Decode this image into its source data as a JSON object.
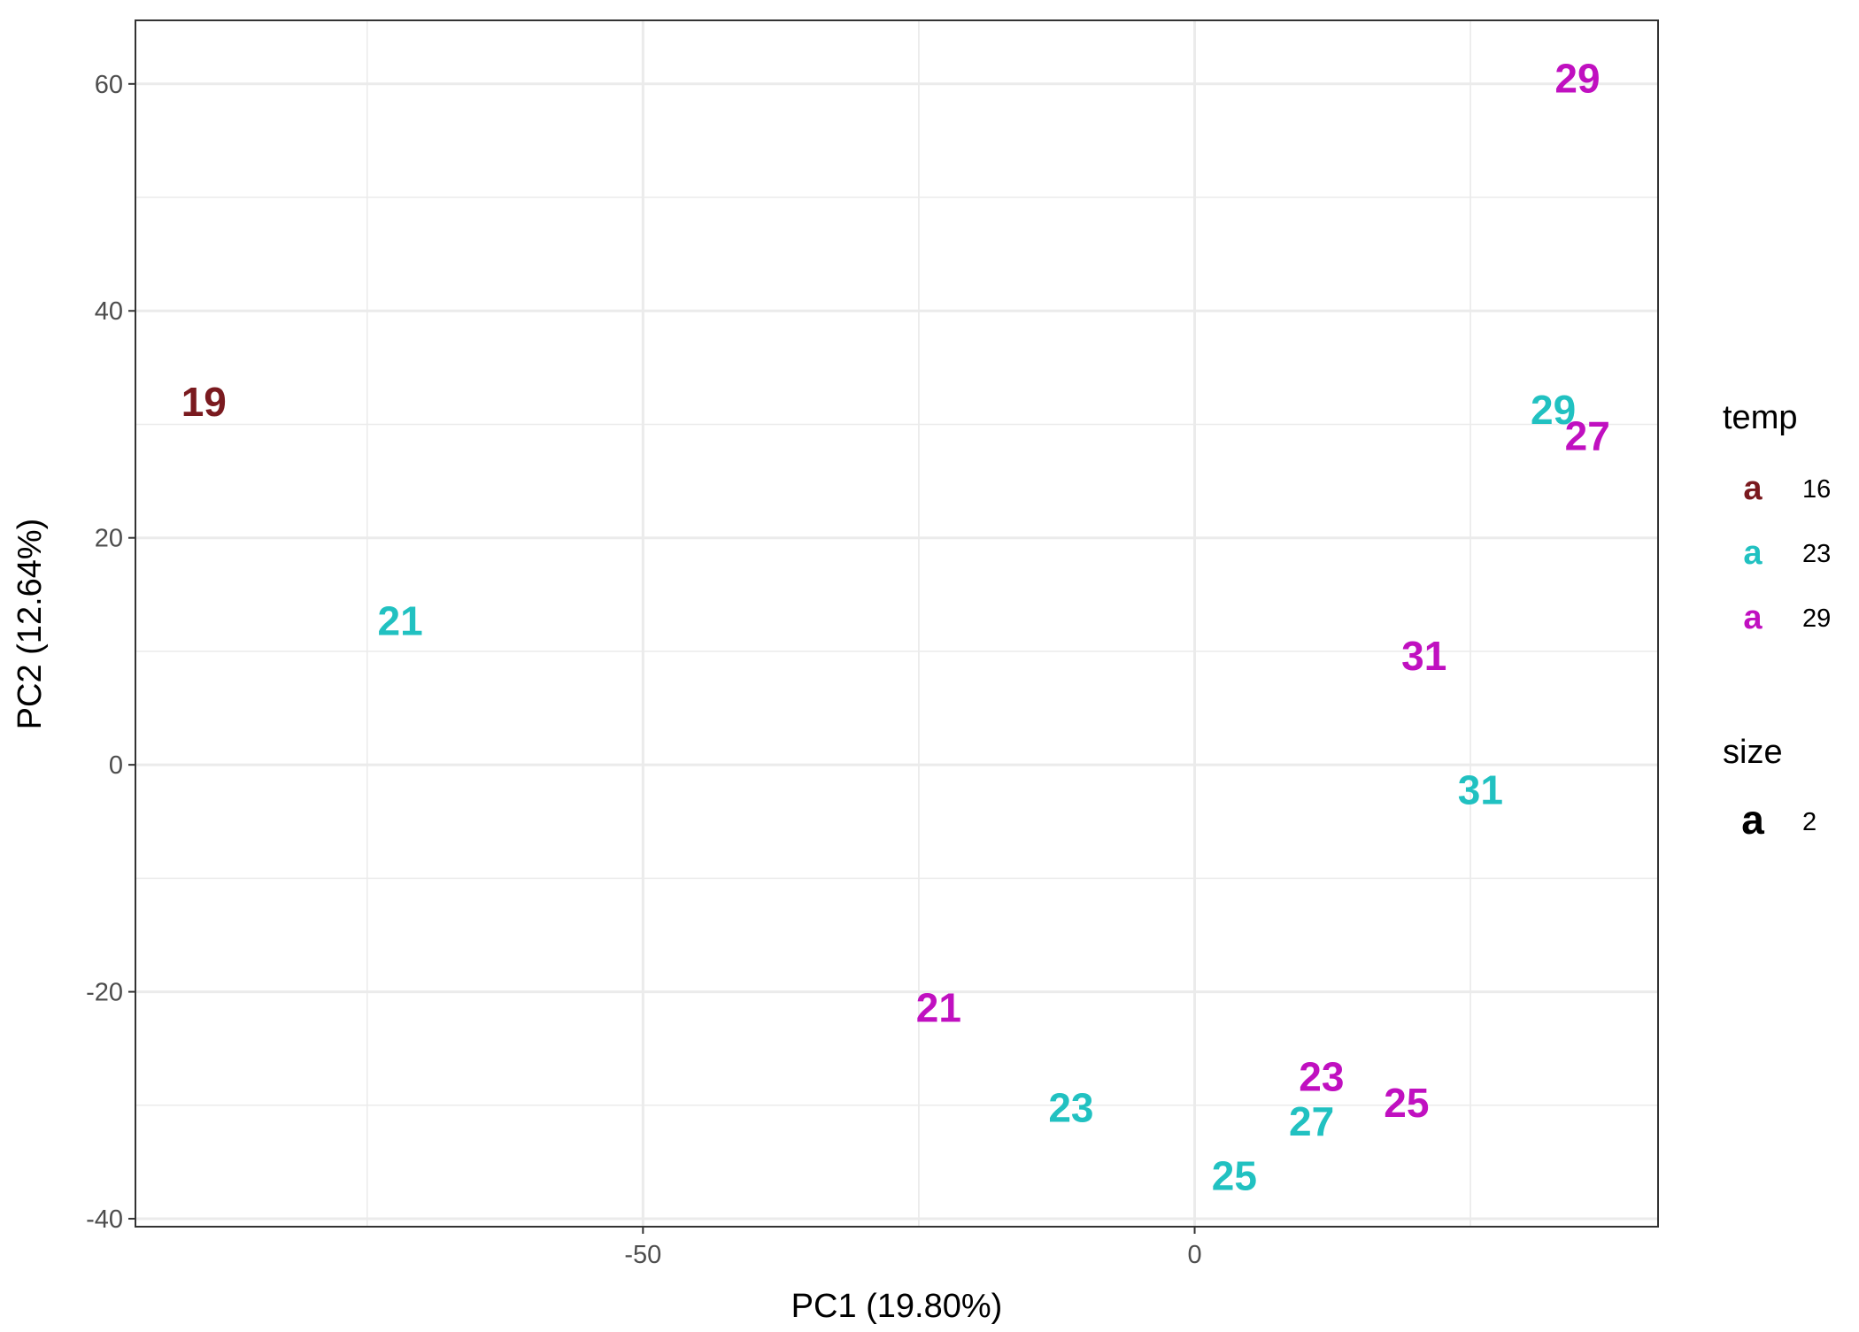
{
  "chart_data": {
    "type": "scatter",
    "xlabel": "PC1 (19.80%)",
    "ylabel": "PC2 (12.64%)",
    "xlim": [
      -96,
      42
    ],
    "ylim": [
      -40.7,
      65.6
    ],
    "x_ticks": [
      -50,
      0
    ],
    "y_ticks": [
      -40,
      -20,
      0,
      20,
      40,
      60
    ],
    "grid": true,
    "colors": {
      "16": "#7a1a1f",
      "23": "#21c1c1",
      "29": "#c010c0"
    },
    "series": [
      {
        "name": "16",
        "points": [
          {
            "x": -89.8,
            "y": 32.0,
            "label": "19"
          }
        ]
      },
      {
        "name": "23",
        "points": [
          {
            "x": -72.0,
            "y": 12.7,
            "label": "21"
          },
          {
            "x": -11.2,
            "y": -30.2,
            "label": "23"
          },
          {
            "x": 3.6,
            "y": -36.2,
            "label": "25"
          },
          {
            "x": 10.6,
            "y": -31.4,
            "label": "27"
          },
          {
            "x": 32.5,
            "y": 31.3,
            "label": "29"
          },
          {
            "x": 25.9,
            "y": -2.2,
            "label": "31"
          }
        ]
      },
      {
        "name": "29",
        "points": [
          {
            "x": -23.2,
            "y": -21.4,
            "label": "21"
          },
          {
            "x": 11.5,
            "y": -27.5,
            "label": "23"
          },
          {
            "x": 19.2,
            "y": -29.8,
            "label": "25"
          },
          {
            "x": 35.6,
            "y": 29.0,
            "label": "27"
          },
          {
            "x": 34.7,
            "y": 60.5,
            "label": "29"
          },
          {
            "x": 20.8,
            "y": 9.6,
            "label": "31"
          }
        ]
      }
    ],
    "legend": {
      "placement": "right",
      "temp_title": "temp",
      "key_glyph": "a",
      "temp_items": [
        "16",
        "23",
        "29"
      ],
      "size_title": "size",
      "size_items": [
        "2"
      ]
    }
  }
}
